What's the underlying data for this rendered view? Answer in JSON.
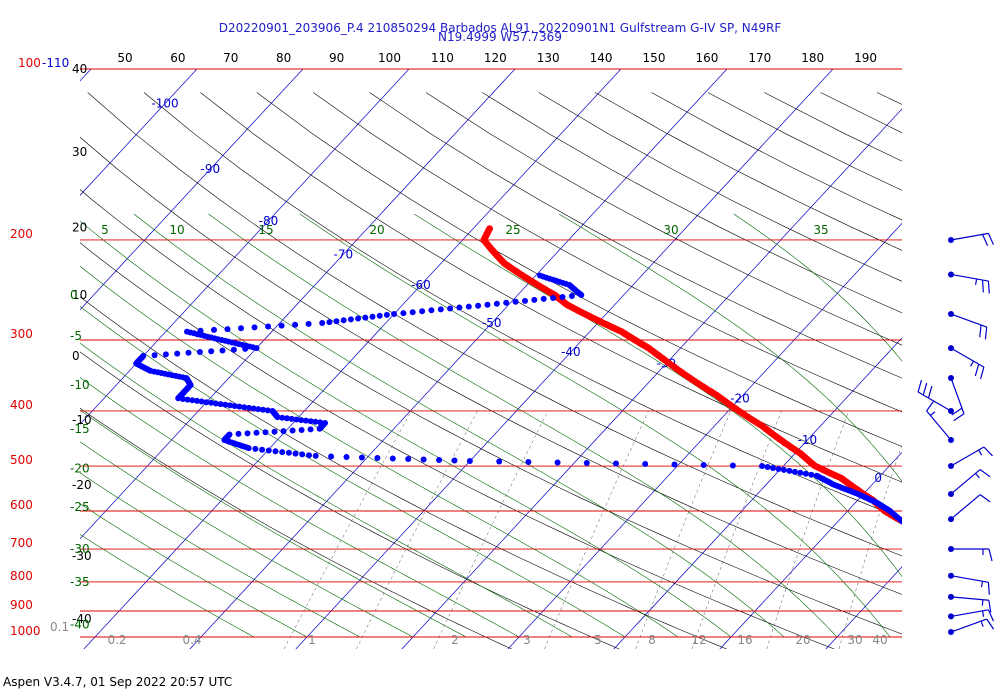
{
  "header": {
    "title_line1": "D20220901_203906_P.4 210850294 Barbados AL91, 20220901N1 Gulfstream G-IV SP, N49RF",
    "title_line2": "N19.4999 W57.7369"
  },
  "footer": {
    "text": "Aspen V3.4.7, 01 Sep 2022  20:57 UTC"
  },
  "colors": {
    "isobar": "#dd0000",
    "isotherm": "#0000cc",
    "dry_adiabat": "#000000",
    "moist_adiabat": "#006600",
    "mixing_ratio": "#555555",
    "temperature": "#ff0000",
    "dewpoint": "#0000ff",
    "wind": "#0000cc",
    "top_tick": "#000000",
    "footnote": "#888888"
  },
  "chart_data": {
    "type": "skew-t",
    "pressure_axis_labels": [
      {
        "p": 1000,
        "label": "1000"
      },
      {
        "p": 900,
        "label": "900"
      },
      {
        "p": 800,
        "label": "800"
      },
      {
        "p": 700,
        "label": "700"
      },
      {
        "p": 600,
        "label": "600"
      },
      {
        "p": 500,
        "label": "500"
      },
      {
        "p": 400,
        "label": "400"
      },
      {
        "p": 300,
        "label": "300"
      },
      {
        "p": 200,
        "label": "200"
      },
      {
        "p": 100,
        "label": "100-110"
      }
    ],
    "top_ticks": [
      "50",
      "60",
      "70",
      "80",
      "90",
      "100",
      "110",
      "120",
      "130",
      "140",
      "150",
      "160",
      "170",
      "180",
      "190"
    ],
    "height_labels": [
      {
        "p": 100,
        "label": "40"
      },
      {
        "p": 140,
        "label": "30"
      },
      {
        "p": 190,
        "label": "20"
      },
      {
        "p": 250,
        "label": "10"
      },
      {
        "p": 320,
        "label": "0"
      },
      {
        "p": 415,
        "label": "-10"
      },
      {
        "p": 540,
        "label": "-20"
      },
      {
        "p": 720,
        "label": "-30"
      },
      {
        "p": 930,
        "label": "-40"
      }
    ],
    "isotherm_labels": [
      {
        "t": -100,
        "p": 115
      },
      {
        "t": -90,
        "p": 150
      },
      {
        "t": -80,
        "p": 185
      },
      {
        "t": -70,
        "p": 212
      },
      {
        "t": -60,
        "p": 240
      },
      {
        "t": -50,
        "p": 280
      },
      {
        "t": -40,
        "p": 315
      },
      {
        "t": -30,
        "p": 330
      },
      {
        "t": -20,
        "p": 380
      },
      {
        "t": -10,
        "p": 450
      },
      {
        "t": 0,
        "p": 525
      },
      {
        "t": 10,
        "p": 630
      },
      {
        "t": 20,
        "p": 760
      },
      {
        "t": 30,
        "p": 890
      },
      {
        "t": 40,
        "p": 1000
      }
    ],
    "moist_labels_top": [
      "5",
      "10",
      "15",
      "20",
      "25",
      "30",
      "35"
    ],
    "moist_labels_left": [
      {
        "p": 250,
        "label": "0"
      },
      {
        "p": 295,
        "label": "-5"
      },
      {
        "p": 360,
        "label": "-10"
      },
      {
        "p": 430,
        "label": "-15"
      },
      {
        "p": 505,
        "label": "-20"
      },
      {
        "p": 590,
        "label": "-25"
      },
      {
        "p": 700,
        "label": "-30"
      },
      {
        "p": 800,
        "label": "-35"
      },
      {
        "p": 950,
        "label": "-40"
      }
    ],
    "mixing_ratio_labels": [
      "0.1",
      "0.2",
      "0.4",
      "1",
      "2",
      "3",
      "5",
      "8",
      "12",
      "16",
      "20",
      "30",
      "40"
    ],
    "series": [
      {
        "name": "Temperature",
        "points": [
          [
            1000,
            29
          ],
          [
            975,
            28
          ],
          [
            950,
            26.5
          ],
          [
            925,
            25
          ],
          [
            900,
            23.5
          ],
          [
            875,
            22.2
          ],
          [
            850,
            20.6
          ],
          [
            800,
            18
          ],
          [
            750,
            15.5
          ],
          [
            700,
            12.5
          ],
          [
            650,
            8.7
          ],
          [
            620,
            5.5
          ],
          [
            600,
            3.5
          ],
          [
            575,
            1.5
          ],
          [
            550,
            -1
          ],
          [
            525,
            -3.5
          ],
          [
            500,
            -7
          ],
          [
            475,
            -9.5
          ],
          [
            450,
            -12.5
          ],
          [
            425,
            -15.5
          ],
          [
            400,
            -19
          ],
          [
            375,
            -22.5
          ],
          [
            350,
            -26.5
          ],
          [
            325,
            -30.5
          ],
          [
            310,
            -33
          ],
          [
            300,
            -35
          ],
          [
            290,
            -37
          ],
          [
            280,
            -39.5
          ],
          [
            270,
            -42
          ],
          [
            260,
            -44.5
          ],
          [
            250,
            -46.5
          ],
          [
            240,
            -49
          ],
          [
            230,
            -51.5
          ],
          [
            220,
            -54
          ],
          [
            210,
            -56
          ],
          [
            200,
            -58
          ],
          [
            190,
            -58.5
          ]
        ]
      },
      {
        "name": "Dewpoint",
        "points": [
          [
            1000,
            23.5
          ],
          [
            950,
            22
          ],
          [
            900,
            20
          ],
          [
            850,
            18
          ],
          [
            800,
            16
          ],
          [
            750,
            14
          ],
          [
            700,
            11.5
          ],
          [
            650,
            8
          ],
          [
            600,
            4
          ],
          [
            580,
            2
          ],
          [
            560,
            -0.5
          ],
          [
            540,
            -3.5
          ],
          [
            520,
            -6
          ],
          [
            500,
            -12
          ],
          [
            490,
            -40
          ],
          [
            480,
            -55
          ],
          [
            465,
            -62
          ],
          [
            450,
            -65
          ],
          [
            440,
            -65
          ],
          [
            430,
            -57
          ],
          [
            420,
            -57
          ],
          [
            410,
            -62
          ],
          [
            400,
            -63
          ],
          [
            390,
            -68
          ],
          [
            380,
            -73
          ],
          [
            370,
            -73
          ],
          [
            360,
            -73
          ],
          [
            350,
            -74
          ],
          [
            340,
            -78
          ],
          [
            330,
            -80
          ],
          [
            320,
            -80
          ],
          [
            310,
            -70
          ],
          [
            300,
            -74
          ],
          [
            290,
            -78
          ],
          [
            280,
            -66
          ],
          [
            270,
            -60
          ],
          [
            260,
            -52
          ],
          [
            250,
            -44
          ],
          [
            240,
            -46
          ],
          [
            230,
            -50
          ]
        ]
      }
    ],
    "wind_barbs": [
      {
        "p": 200,
        "direction": 80,
        "speed": 20
      },
      {
        "p": 230,
        "direction": 100,
        "speed": 25
      },
      {
        "p": 270,
        "direction": 110,
        "speed": 20
      },
      {
        "p": 310,
        "direction": 120,
        "speed": 25
      },
      {
        "p": 350,
        "direction": 160,
        "speed": 20
      },
      {
        "p": 400,
        "direction": 300,
        "speed": 30
      },
      {
        "p": 450,
        "direction": 320,
        "speed": 15
      },
      {
        "p": 500,
        "direction": 60,
        "speed": 15
      },
      {
        "p": 560,
        "direction": 50,
        "speed": 15
      },
      {
        "p": 620,
        "direction": 50,
        "speed": 10
      },
      {
        "p": 700,
        "direction": 90,
        "speed": 15
      },
      {
        "p": 780,
        "direction": 100,
        "speed": 15
      },
      {
        "p": 850,
        "direction": 95,
        "speed": 15
      },
      {
        "p": 920,
        "direction": 80,
        "speed": 15
      },
      {
        "p": 980,
        "direction": 70,
        "speed": 15
      }
    ]
  }
}
